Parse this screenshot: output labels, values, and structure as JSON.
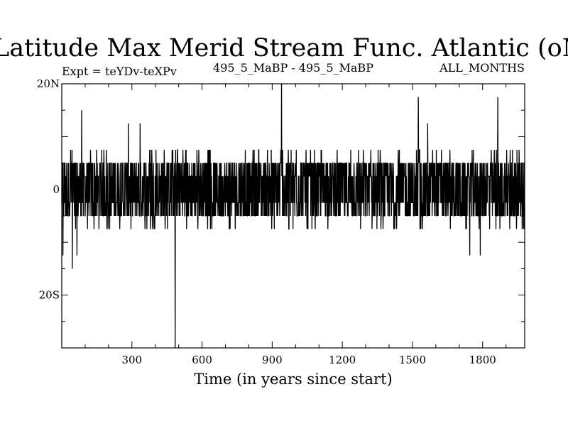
{
  "chart_data": {
    "type": "line",
    "title": "Latitude Max Merid Stream Func. Atlantic (oN)",
    "subtitle_left": "Expt = teYDv-teXPv",
    "subtitle_center": "495_5_MaBP - 495_5_MaBP",
    "subtitle_right": "ALL_MONTHS",
    "xlabel": "Time (in years since start)",
    "ylabel": "",
    "xlim": [
      0,
      1980
    ],
    "ylim": [
      -30,
      20
    ],
    "x_ticks": [
      {
        "value": 300,
        "label": "300"
      },
      {
        "value": 600,
        "label": "600"
      },
      {
        "value": 900,
        "label": "900"
      },
      {
        "value": 1200,
        "label": "1200"
      },
      {
        "value": 1500,
        "label": "1500"
      },
      {
        "value": 1800,
        "label": "1800"
      }
    ],
    "y_ticks": [
      {
        "value": 20,
        "label": "20N"
      },
      {
        "value": 0,
        "label": "0"
      },
      {
        "value": -20,
        "label": "20S"
      }
    ],
    "series": [
      {
        "name": "Latitude Max Merid Stream Func.",
        "band_values": [
          -5,
          -2.5,
          2.5,
          5
        ],
        "outer_values": [
          -7.5,
          7.5
        ],
        "spikes": [
          {
            "x": 5,
            "y": -12.5
          },
          {
            "x": 45,
            "y": -15
          },
          {
            "x": 65,
            "y": -12.5
          },
          {
            "x": 85,
            "y": 15
          },
          {
            "x": 285,
            "y": 12.5
          },
          {
            "x": 335,
            "y": 12.5
          },
          {
            "x": 485,
            "y": -30
          },
          {
            "x": 940,
            "y": 20
          },
          {
            "x": 1525,
            "y": 17.5
          },
          {
            "x": 1565,
            "y": 12.5
          },
          {
            "x": 1745,
            "y": -12.5
          },
          {
            "x": 1790,
            "y": -12.5
          },
          {
            "x": 1865,
            "y": 17.5
          }
        ]
      }
    ]
  }
}
